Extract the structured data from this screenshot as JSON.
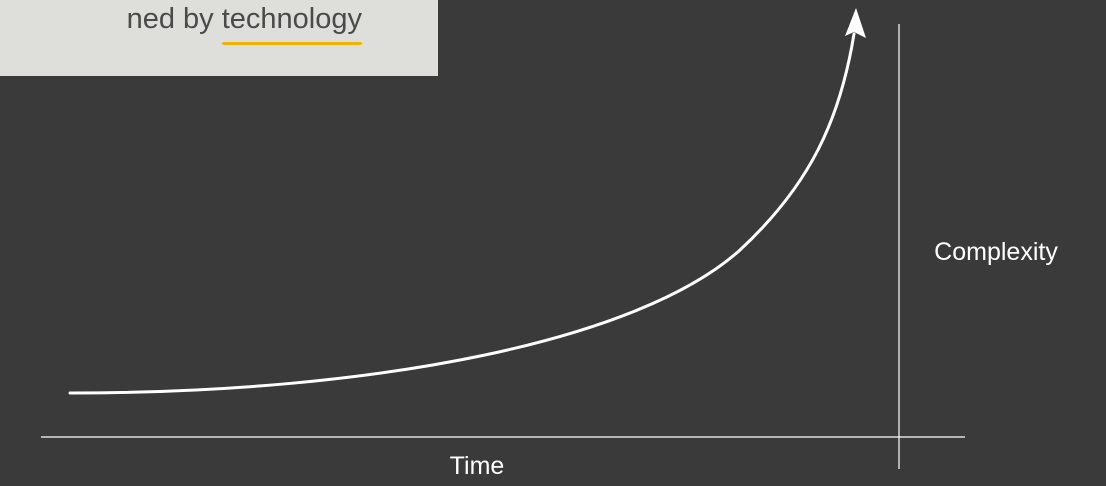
{
  "title": {
    "prefix": "ned by",
    "highlight": "technology"
  },
  "diagram": {
    "x_axis_label": "Time",
    "y_axis_label": "Complexity",
    "colors": {
      "background": "#3a3a3a",
      "title_box": "#dedfda",
      "highlight_underline": "#f0b300",
      "lines": "#ffffff"
    }
  }
}
